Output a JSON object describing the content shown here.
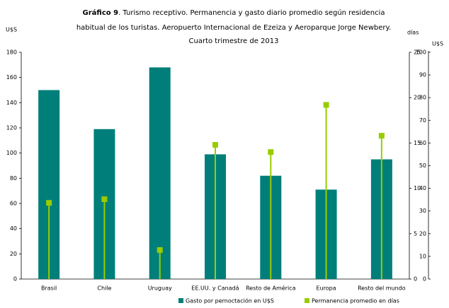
{
  "chart_data": {
    "type": "bar_stem",
    "title_label": "Gráfico 9",
    "title_lines": [
      ". Turismo receptivo. Permanencia y gasto diario promedio según residencia",
      "habitual de los turistas. Aeropuerto Internacional de Ezeiza y Aeroparque Jorge Newbery.",
      "Cuarto trimestre de 2013"
    ],
    "ylabel": "U$S",
    "y2label": "días",
    "y3label": "U$S",
    "categories": [
      "Brasil",
      "Chile",
      "Uruguay",
      "EE.UU. y Canadá",
      "Resto de América",
      "Europa",
      "Resto del mundo"
    ],
    "series": [
      {
        "name": "Gasto por pernoctación en U$S",
        "color": "#007f7a",
        "values": [
          150,
          119,
          168,
          99,
          82,
          71,
          95
        ]
      },
      {
        "name": "Permanencia promedio en días",
        "color": "#99cc00",
        "axis": "y2",
        "values": [
          8.4,
          8.8,
          3.2,
          14.8,
          14.0,
          19.2,
          15.8
        ]
      }
    ],
    "ylim": [
      0,
      180
    ],
    "yticks": [
      0,
      20,
      40,
      60,
      80,
      100,
      120,
      140,
      160,
      180
    ],
    "y2lim": [
      0,
      25
    ],
    "y2ticks": [
      0,
      5,
      10,
      15,
      20,
      25
    ],
    "y3lim": [
      0,
      100
    ],
    "y3ticks": [
      0,
      10,
      20,
      30,
      40,
      50,
      60,
      70,
      80,
      90,
      100
    ],
    "legend": "bottom"
  }
}
